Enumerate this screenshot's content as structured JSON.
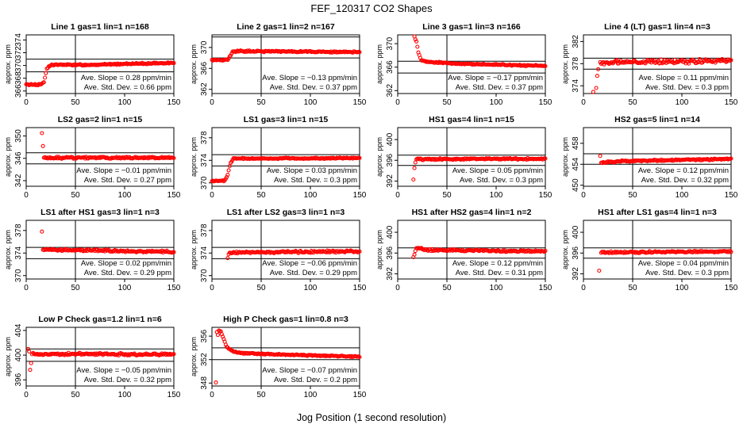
{
  "figure": {
    "title": "FEF_120317  CO2 Shapes",
    "xlabel": "Jog Position (1 second resolution)"
  },
  "colors": {
    "points": "#ff0000",
    "axes": "#000000",
    "background": "#ffffff"
  },
  "chart_data": [
    {
      "type": "scatter",
      "title": "Line 1 gas=1 lin=1 n=168",
      "ylabel": "approx. ppm",
      "xlim": [
        0,
        150
      ],
      "ylim": [
        365.6,
        374.8
      ],
      "yticks": [
        366,
        368,
        370,
        372,
        374
      ],
      "xticks": [
        0,
        50,
        100,
        150
      ],
      "hlines": [
        369,
        371
      ],
      "vline": 50,
      "slope": "Ave. Slope =  0.28  ppm/min",
      "std": "Ave. Std. Dev. =  0.66  ppm",
      "profile": [
        [
          0,
          367
        ],
        [
          15,
          367
        ],
        [
          18,
          367.4
        ],
        [
          21,
          369.5
        ],
        [
          25,
          370.1
        ],
        [
          60,
          370.1
        ],
        [
          150,
          370.4
        ]
      ],
      "noise": 0.08
    },
    {
      "type": "scatter",
      "title": "Line 2 gas=1 lin=2 n=167",
      "ylabel": "approx. ppm",
      "xlim": [
        0,
        150
      ],
      "ylim": [
        361.2,
        372.4
      ],
      "yticks": [
        362,
        366,
        370
      ],
      "xticks": [
        0,
        50,
        100,
        150
      ],
      "hlines": [
        368,
        372
      ],
      "vline": 50,
      "slope": "Ave. Slope = −0.13  ppm/min",
      "std": "Ave. Std. Dev. =  0.37  ppm",
      "profile": [
        [
          0,
          367.6
        ],
        [
          16,
          367.6
        ],
        [
          21,
          369.2
        ],
        [
          25,
          369.3
        ],
        [
          150,
          369.1
        ]
      ],
      "noise": 0.1
    },
    {
      "type": "scatter",
      "title": "Line 3 gas=1 lin=3 n=166",
      "ylabel": "approx. ppm",
      "xlim": [
        0,
        150
      ],
      "ylim": [
        361.5,
        371.5
      ],
      "yticks": [
        362,
        366,
        370
      ],
      "xticks": [
        0,
        50,
        100,
        150
      ],
      "hlines": [
        365,
        367
      ],
      "vline": 50,
      "slope": "Ave. Slope = −0.17  ppm/min",
      "std": "Ave. Std. Dev. =  0.37  ppm",
      "profile": [
        [
          17,
          371.2
        ],
        [
          19,
          370.4
        ],
        [
          21,
          368.5
        ],
        [
          24,
          367.2
        ],
        [
          30,
          366.9
        ],
        [
          60,
          366.6
        ],
        [
          150,
          366.2
        ]
      ],
      "noise": 0.08
    },
    {
      "type": "scatter",
      "title": "Line 4 (LT) gas=1 lin=4 n=3",
      "ylabel": "approx. ppm",
      "xlim": [
        0,
        150
      ],
      "ylim": [
        372.6,
        383.2
      ],
      "yticks": [
        374,
        378,
        382
      ],
      "xticks": [
        0,
        50,
        100,
        150
      ],
      "hlines": [
        377,
        379
      ],
      "vline": 50,
      "slope": "Ave. Slope =  0.11  ppm/min",
      "std": "Ave. Std. Dev. =  0.3  ppm",
      "profile": [
        [
          17,
          378.2
        ],
        [
          150,
          378.5
        ]
      ],
      "noise": 0.28,
      "extras": [
        [
          10,
          372.9
        ],
        [
          13,
          373.6
        ],
        [
          14,
          375.8
        ],
        [
          15,
          377.0
        ]
      ]
    },
    {
      "type": "scatter",
      "title": "LS2 gas=2 lin=1 n=15",
      "ylabel": "approx. ppm",
      "xlim": [
        0,
        150
      ],
      "ylim": [
        341,
        351.5
      ],
      "yticks": [
        342,
        346,
        350
      ],
      "xticks": [
        0,
        50,
        100,
        150
      ],
      "hlines": [
        345,
        347
      ],
      "vline": 50,
      "slope": "Ave. Slope = −0.01  ppm/min",
      "std": "Ave. Std. Dev. =  0.27  ppm",
      "profile": [
        [
          18,
          346.1
        ],
        [
          150,
          346.1
        ]
      ],
      "noise": 0.12,
      "extras": [
        [
          16,
          350.5
        ],
        [
          17,
          348.2
        ]
      ]
    },
    {
      "type": "scatter",
      "title": "LS1 gas=3 lin=1 n=15",
      "ylabel": "approx. ppm",
      "xlim": [
        0,
        150
      ],
      "ylim": [
        369.4,
        379.8
      ],
      "yticks": [
        370,
        374,
        378
      ],
      "xticks": [
        0,
        50,
        100,
        150
      ],
      "hlines": [
        373,
        375
      ],
      "vline": 50,
      "slope": "Ave. Slope =  0.03  ppm/min",
      "std": "Ave. Std. Dev. =  0.3  ppm",
      "profile": [
        [
          0,
          370.3
        ],
        [
          13,
          370.4
        ],
        [
          16,
          371.5
        ],
        [
          19,
          373.6
        ],
        [
          22,
          374.3
        ],
        [
          150,
          374.4
        ]
      ],
      "noise": 0.08
    },
    {
      "type": "scatter",
      "title": "HS1 gas=4 lin=1 n=15",
      "ylabel": "approx. ppm",
      "xlim": [
        0,
        150
      ],
      "ylim": [
        391,
        402.3
      ],
      "yticks": [
        392,
        396,
        400
      ],
      "xticks": [
        0,
        50,
        100,
        150
      ],
      "hlines": [
        395,
        397
      ],
      "vline": 50,
      "slope": "Ave. Slope =  0.05  ppm/min",
      "std": "Ave. Std. Dev. =  0.3  ppm",
      "profile": [
        [
          19,
          396.2
        ],
        [
          150,
          396.3
        ]
      ],
      "noise": 0.12,
      "extras": [
        [
          16,
          392.3
        ],
        [
          17,
          394.5
        ],
        [
          18,
          395.6
        ]
      ]
    },
    {
      "type": "scatter",
      "title": "HS2 gas=5 lin=1 n=14",
      "ylabel": "approx. ppm",
      "xlim": [
        0,
        150
      ],
      "ylim": [
        449.8,
        461
      ],
      "yticks": [
        450,
        454,
        458
      ],
      "xticks": [
        0,
        50,
        100,
        150
      ],
      "hlines": [
        454,
        456
      ],
      "vline": 50,
      "slope": "Ave. Slope =  0.12  ppm/min",
      "std": "Ave. Std. Dev. =  0.32  ppm",
      "profile": [
        [
          18,
          454.3
        ],
        [
          40,
          454.6
        ],
        [
          150,
          455.0
        ]
      ],
      "noise": 0.12,
      "extras": [
        [
          17,
          455.6
        ]
      ]
    },
    {
      "type": "scatter",
      "title": "LS1 after HS1 gas=3 lin=1 n=3",
      "ylabel": "approx. ppm",
      "xlim": [
        0,
        150
      ],
      "ylim": [
        369.4,
        379.8
      ],
      "yticks": [
        370,
        374,
        378
      ],
      "xticks": [
        0,
        50,
        100,
        150
      ],
      "hlines": [
        373,
        375
      ],
      "vline": 50,
      "slope": "Ave. Slope =  0.02  ppm/min",
      "std": "Ave. Std. Dev. =  0.29  ppm",
      "profile": [
        [
          17,
          374.6
        ],
        [
          150,
          374.2
        ]
      ],
      "noise": 0.14,
      "extras": [
        [
          16,
          377.8
        ]
      ]
    },
    {
      "type": "scatter",
      "title": "LS1 after LS2 gas=3 lin=1 n=3",
      "ylabel": "approx. ppm",
      "xlim": [
        0,
        150
      ],
      "ylim": [
        369.4,
        379.8
      ],
      "yticks": [
        370,
        374,
        378
      ],
      "xticks": [
        0,
        50,
        100,
        150
      ],
      "hlines": [
        373,
        375
      ],
      "vline": 50,
      "slope": "Ave. Slope = −0.06  ppm/min",
      "std": "Ave. Std. Dev. =  0.29  ppm",
      "profile": [
        [
          18,
          374.1
        ],
        [
          150,
          374.3
        ]
      ],
      "noise": 0.14,
      "extras": [
        [
          16,
          373.1
        ],
        [
          17,
          373.8
        ]
      ]
    },
    {
      "type": "scatter",
      "title": "HS1 after HS2 gas=4 lin=1 n=2",
      "ylabel": "approx. ppm",
      "xlim": [
        0,
        150
      ],
      "ylim": [
        391,
        402.3
      ],
      "yticks": [
        392,
        396,
        400
      ],
      "xticks": [
        0,
        50,
        100,
        150
      ],
      "hlines": [
        395,
        397
      ],
      "vline": 50,
      "slope": "Ave. Slope =  0.12  ppm/min",
      "std": "Ave. Std. Dev. =  0.31  ppm",
      "profile": [
        [
          19,
          397.0
        ],
        [
          30,
          396.6
        ],
        [
          150,
          396.3
        ]
      ],
      "noise": 0.14,
      "extras": [
        [
          16,
          395.2
        ],
        [
          17,
          395.7
        ],
        [
          18,
          396.4
        ]
      ]
    },
    {
      "type": "scatter",
      "title": "HS1 after LS1 gas=4 lin=1 n=3",
      "ylabel": "approx. ppm",
      "xlim": [
        0,
        150
      ],
      "ylim": [
        391,
        402.3
      ],
      "yticks": [
        392,
        396,
        400
      ],
      "xticks": [
        0,
        50,
        100,
        150
      ],
      "hlines": [
        395,
        397
      ],
      "vline": 50,
      "slope": "Ave. Slope =  0.04  ppm/min",
      "std": "Ave. Std. Dev. =  0.3  ppm",
      "profile": [
        [
          18,
          396.1
        ],
        [
          150,
          396.3
        ]
      ],
      "noise": 0.12,
      "extras": [
        [
          16,
          392.6
        ]
      ]
    },
    {
      "type": "scatter",
      "title": "Low P Check gas=1.2 lin=1 n=6",
      "ylabel": "approx. ppm",
      "xlim": [
        0,
        150
      ],
      "ylim": [
        395,
        404.5
      ],
      "yticks": [
        396,
        400,
        404
      ],
      "xticks": [
        0,
        50,
        100,
        150
      ],
      "hlines": [
        399,
        401
      ],
      "vline": 50,
      "slope": "Ave. Slope = −0.05  ppm/min",
      "std": "Ave. Std. Dev. =  0.32  ppm",
      "profile": [
        [
          6,
          400.2
        ],
        [
          150,
          400.1
        ]
      ],
      "noise": 0.14,
      "extras": [
        [
          2,
          401.0
        ],
        [
          3,
          400.6
        ],
        [
          4,
          397.6
        ],
        [
          5,
          398.7
        ]
      ]
    },
    {
      "type": "scatter",
      "title": "High P Check gas=1 lin=0.8 n=3",
      "ylabel": "approx. ppm",
      "xlim": [
        0,
        150
      ],
      "ylim": [
        347.5,
        357.5
      ],
      "yticks": [
        348,
        352,
        356
      ],
      "xticks": [
        0,
        50,
        100,
        150
      ],
      "hlines": [
        352,
        354
      ],
      "vline": 50,
      "slope": "Ave. Slope = −0.07  ppm/min",
      "std": "Ave. Std. Dev. =  0.2  ppm",
      "profile": [
        [
          7,
          357.0
        ],
        [
          9,
          356.8
        ],
        [
          12,
          355.5
        ],
        [
          15,
          354.2
        ],
        [
          20,
          353.5
        ],
        [
          30,
          353.1
        ],
        [
          60,
          352.9
        ],
        [
          150,
          352.5
        ]
      ],
      "noise": 0.07,
      "extras": [
        [
          4,
          348.1
        ],
        [
          5,
          356.7
        ],
        [
          6,
          356.2
        ]
      ]
    }
  ]
}
